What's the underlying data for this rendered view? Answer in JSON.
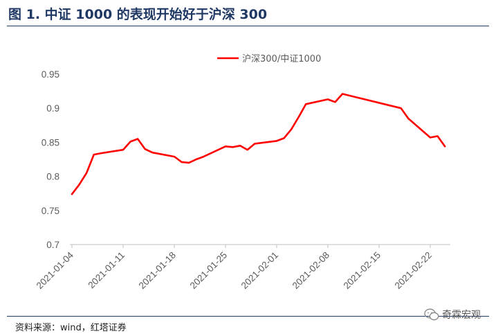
{
  "figure": {
    "title": "图 1. 中证 1000 的表现开始好于沪深 300",
    "source": "资料来源：wind，红塔证券",
    "brand": "奇霖宏观",
    "brand_icon": "wechat-icon"
  },
  "chart_data": {
    "type": "line",
    "title": "",
    "xlabel": "",
    "ylabel": "",
    "ylim": [
      0.7,
      0.95
    ],
    "yticks": [
      "0.7",
      "0.75",
      "0.8",
      "0.85",
      "0.9",
      "0.95"
    ],
    "xticks": [
      "2021-01-04",
      "2021-01-11",
      "2021-01-18",
      "2021-01-25",
      "2021-02-01",
      "2021-02-08",
      "2021-02-15",
      "2021-02-22"
    ],
    "grid": false,
    "legend": "top-center",
    "line_color": "#ff0000",
    "series": [
      {
        "name": "沪深300/中证1000",
        "points": [
          [
            "2021-01-04",
            0.774
          ],
          [
            "2021-01-05",
            0.788
          ],
          [
            "2021-01-06",
            0.805
          ],
          [
            "2021-01-07",
            0.832
          ],
          [
            "2021-01-08",
            0.834
          ],
          [
            "2021-01-11",
            0.839
          ],
          [
            "2021-01-12",
            0.851
          ],
          [
            "2021-01-13",
            0.855
          ],
          [
            "2021-01-14",
            0.84
          ],
          [
            "2021-01-15",
            0.835
          ],
          [
            "2021-01-18",
            0.829
          ],
          [
            "2021-01-19",
            0.821
          ],
          [
            "2021-01-20",
            0.82
          ],
          [
            "2021-01-21",
            0.825
          ],
          [
            "2021-01-22",
            0.829
          ],
          [
            "2021-01-25",
            0.844
          ],
          [
            "2021-01-26",
            0.843
          ],
          [
            "2021-01-27",
            0.845
          ],
          [
            "2021-01-28",
            0.839
          ],
          [
            "2021-01-29",
            0.848
          ],
          [
            "2021-02-01",
            0.852
          ],
          [
            "2021-02-02",
            0.856
          ],
          [
            "2021-02-03",
            0.869
          ],
          [
            "2021-02-04",
            0.887
          ],
          [
            "2021-02-05",
            0.906
          ],
          [
            "2021-02-08",
            0.913
          ],
          [
            "2021-02-09",
            0.909
          ],
          [
            "2021-02-10",
            0.921
          ],
          [
            "2021-02-18",
            0.9
          ],
          [
            "2021-02-19",
            0.885
          ],
          [
            "2021-02-22",
            0.857
          ],
          [
            "2021-02-23",
            0.859
          ],
          [
            "2021-02-24",
            0.844
          ]
        ]
      }
    ]
  }
}
